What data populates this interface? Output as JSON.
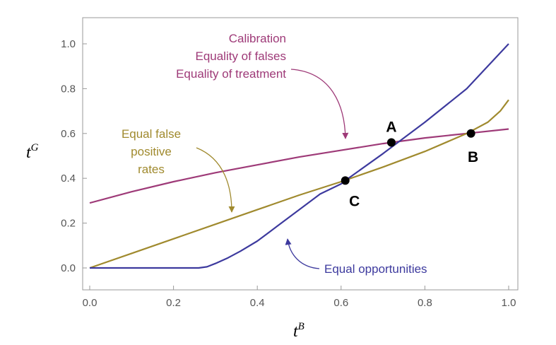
{
  "chart_data": {
    "type": "line",
    "xlabel": "t",
    "xlabel_sup": "B",
    "ylabel": "t",
    "ylabel_sup": "G",
    "xlim": [
      0,
      1
    ],
    "ylim": [
      -0.1,
      1.1
    ],
    "xticks": [
      0.0,
      0.2,
      0.4,
      0.6,
      0.8,
      1.0
    ],
    "xtick_labels": [
      "0.0",
      "0.2",
      "0.4",
      "0.6",
      "0.8",
      "1.0"
    ],
    "yticks": [
      0.0,
      0.2,
      0.4,
      0.6,
      0.8,
      1.0
    ],
    "ytick_labels": [
      "0.0",
      "0.2",
      "0.4",
      "0.6",
      "0.8",
      "1.0"
    ],
    "grid": false,
    "series": [
      {
        "color": "#9e3a78",
        "x": [
          0,
          0.1,
          0.2,
          0.3,
          0.4,
          0.5,
          0.6,
          0.7,
          0.8,
          0.9,
          1.0
        ],
        "y": [
          0.29,
          0.34,
          0.385,
          0.425,
          0.46,
          0.495,
          0.525,
          0.555,
          0.58,
          0.6,
          0.62
        ]
      },
      {
        "color": "#a08a2e",
        "x": [
          0,
          0.1,
          0.2,
          0.3,
          0.4,
          0.5,
          0.6,
          0.7,
          0.8,
          0.9,
          0.95,
          0.98,
          1.0
        ],
        "y": [
          0,
          0.065,
          0.13,
          0.195,
          0.26,
          0.325,
          0.385,
          0.45,
          0.52,
          0.6,
          0.65,
          0.7,
          0.75
        ]
      },
      {
        "color": "#3d3a9e",
        "x": [
          0,
          0.26,
          0.28,
          0.3,
          0.33,
          0.36,
          0.4,
          0.45,
          0.5,
          0.55,
          0.6,
          0.61,
          0.7,
          0.8,
          0.9,
          1.0
        ],
        "y": [
          0,
          0,
          0.005,
          0.02,
          0.045,
          0.075,
          0.12,
          0.19,
          0.26,
          0.33,
          0.375,
          0.39,
          0.51,
          0.65,
          0.8,
          1.0
        ]
      }
    ],
    "points": [
      {
        "label": "A",
        "x": 0.72,
        "y": 0.56
      },
      {
        "label": "B",
        "x": 0.91,
        "y": 0.6
      },
      {
        "label": "C",
        "x": 0.61,
        "y": 0.39
      }
    ],
    "annotations": [
      {
        "lines": [
          "Calibration",
          "Equality of falses",
          "Equality of treatment"
        ],
        "color": "#9e3a78"
      },
      {
        "lines": [
          "Equal false",
          "positive",
          "rates"
        ],
        "color": "#a08a2e"
      },
      {
        "lines": [
          "Equal opportunities"
        ],
        "color": "#3d3a9e"
      }
    ]
  }
}
